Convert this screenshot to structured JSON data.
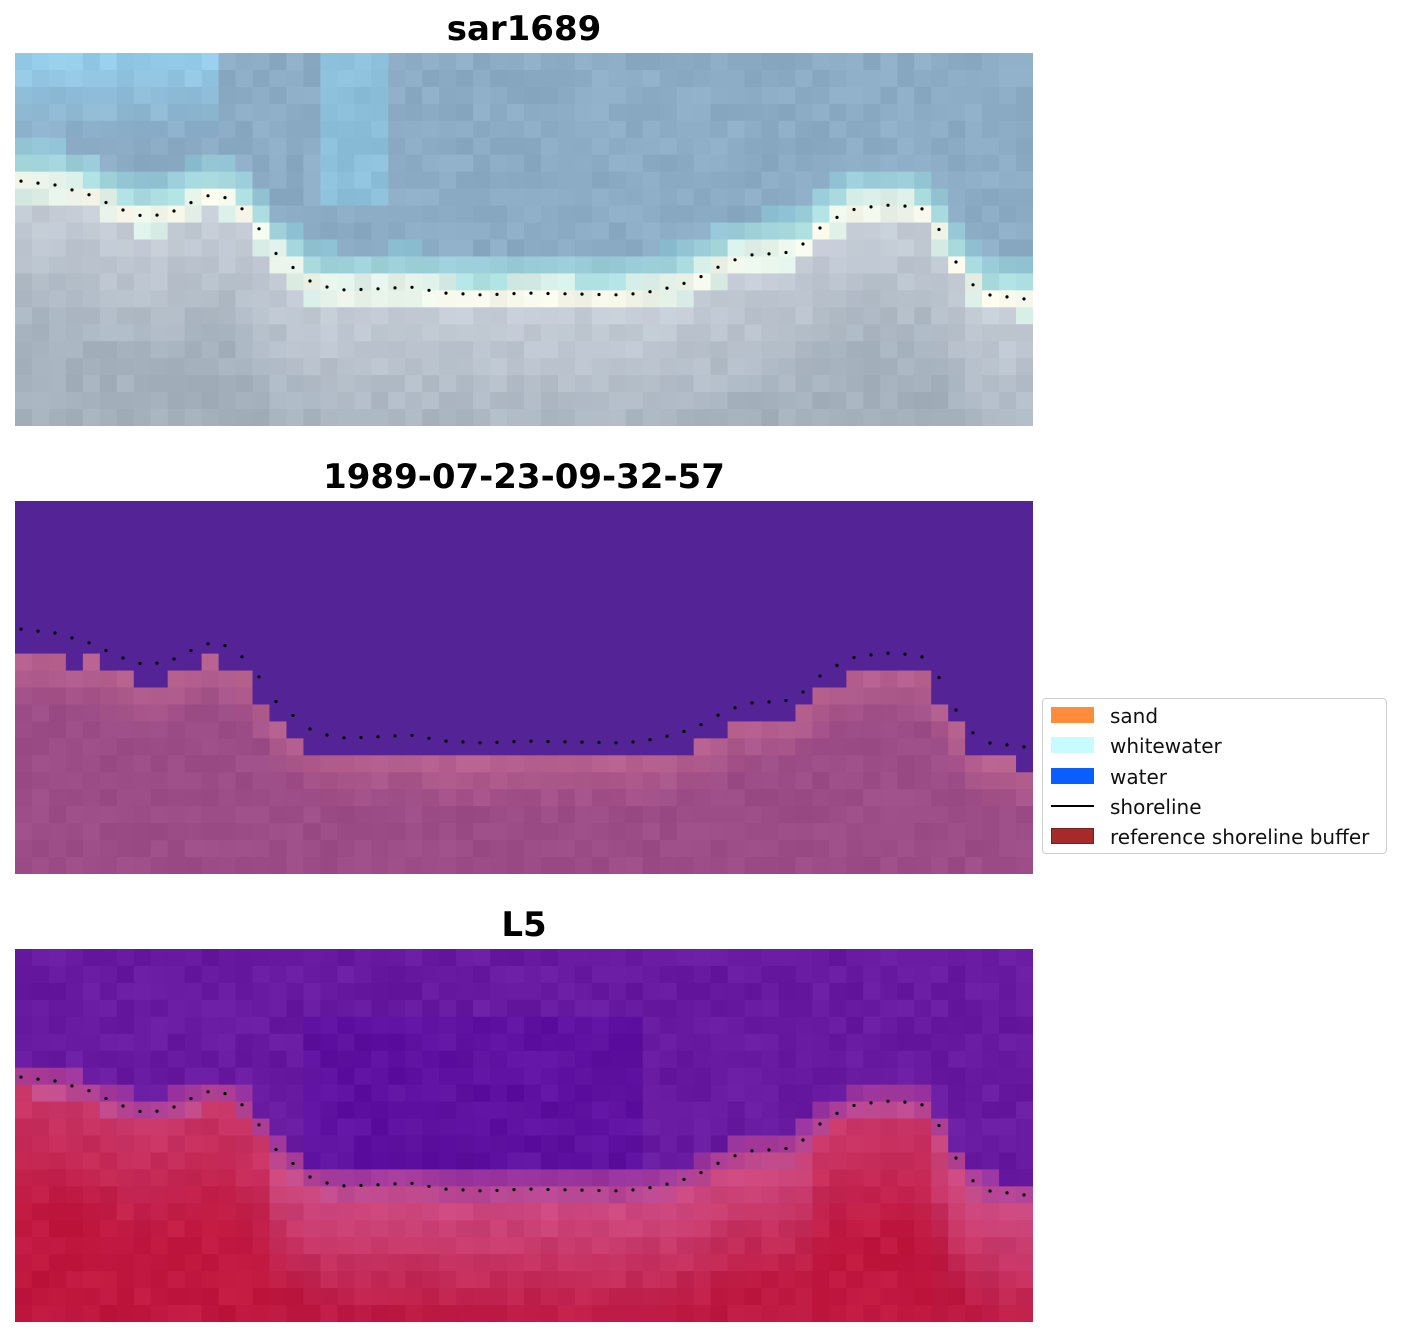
{
  "panels": [
    {
      "title": "sar1689",
      "kind": "rgb"
    },
    {
      "title": "1989-07-23-09-32-57",
      "kind": "classified"
    },
    {
      "title": "L5",
      "kind": "index"
    }
  ],
  "legend": {
    "items": [
      {
        "label": "sand",
        "type": "patch",
        "color": "#ff8c3a",
        "edge": "#ff8c3a"
      },
      {
        "label": "whitewater",
        "type": "patch",
        "color": "#c8fbff",
        "edge": "#c8fbff"
      },
      {
        "label": "water",
        "type": "patch",
        "color": "#0a5dff",
        "edge": "#0a5dff"
      },
      {
        "label": "shoreline",
        "type": "line",
        "color": "#000000"
      },
      {
        "label": "reference shoreline buffer",
        "type": "patch",
        "color": "#a52a2a",
        "edge": "#7a1d1d"
      }
    ]
  },
  "colors": {
    "classified_water": "#542496",
    "classified_land": "#9c4c86",
    "classified_buffer_edge": "#b8628f",
    "index_water": "#6a1aa0",
    "index_land": "#c0204a",
    "shoreline_dots": "#000000"
  }
}
